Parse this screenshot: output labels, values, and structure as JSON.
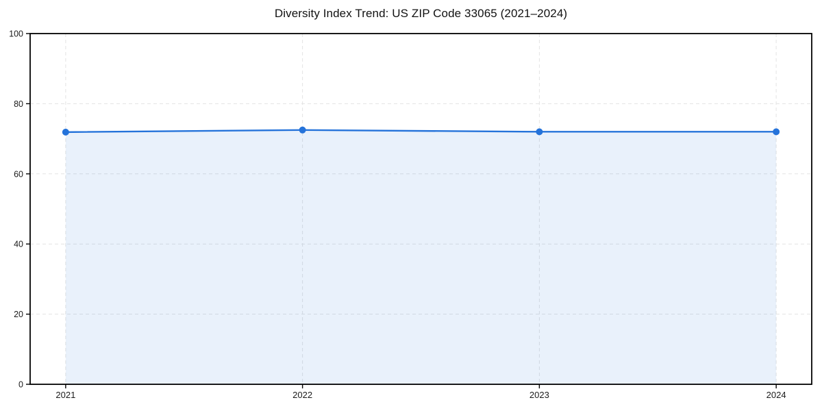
{
  "figure": {
    "background": "#ffffff"
  },
  "chart_data": {
    "type": "line",
    "title": "Diversity Index Trend: US ZIP Code 33065 (2021–2024)",
    "x": [
      2021,
      2022,
      2023,
      2024
    ],
    "xtick_labels": [
      "2021",
      "2022",
      "2023",
      "2024"
    ],
    "series": [
      {
        "name": "Diversity Index",
        "values": [
          71.9,
          72.5,
          72.0,
          72.0
        ]
      }
    ],
    "xlabel": "",
    "ylabel": "",
    "ylim": [
      0,
      100
    ],
    "yticks": [
      0,
      20,
      40,
      60,
      80,
      100
    ],
    "grid": "dashed-both-axes",
    "legend": "none",
    "area_fill_under_line": true,
    "markers": "circle",
    "colors": {
      "line": "#2573da",
      "marker": "#2573da",
      "area_fill": "#2573da",
      "area_opacity": 0.1,
      "grid": "#e3e3e3",
      "axis": "#000000",
      "tick_label": "#1a1a1a",
      "title": "#111111"
    }
  }
}
